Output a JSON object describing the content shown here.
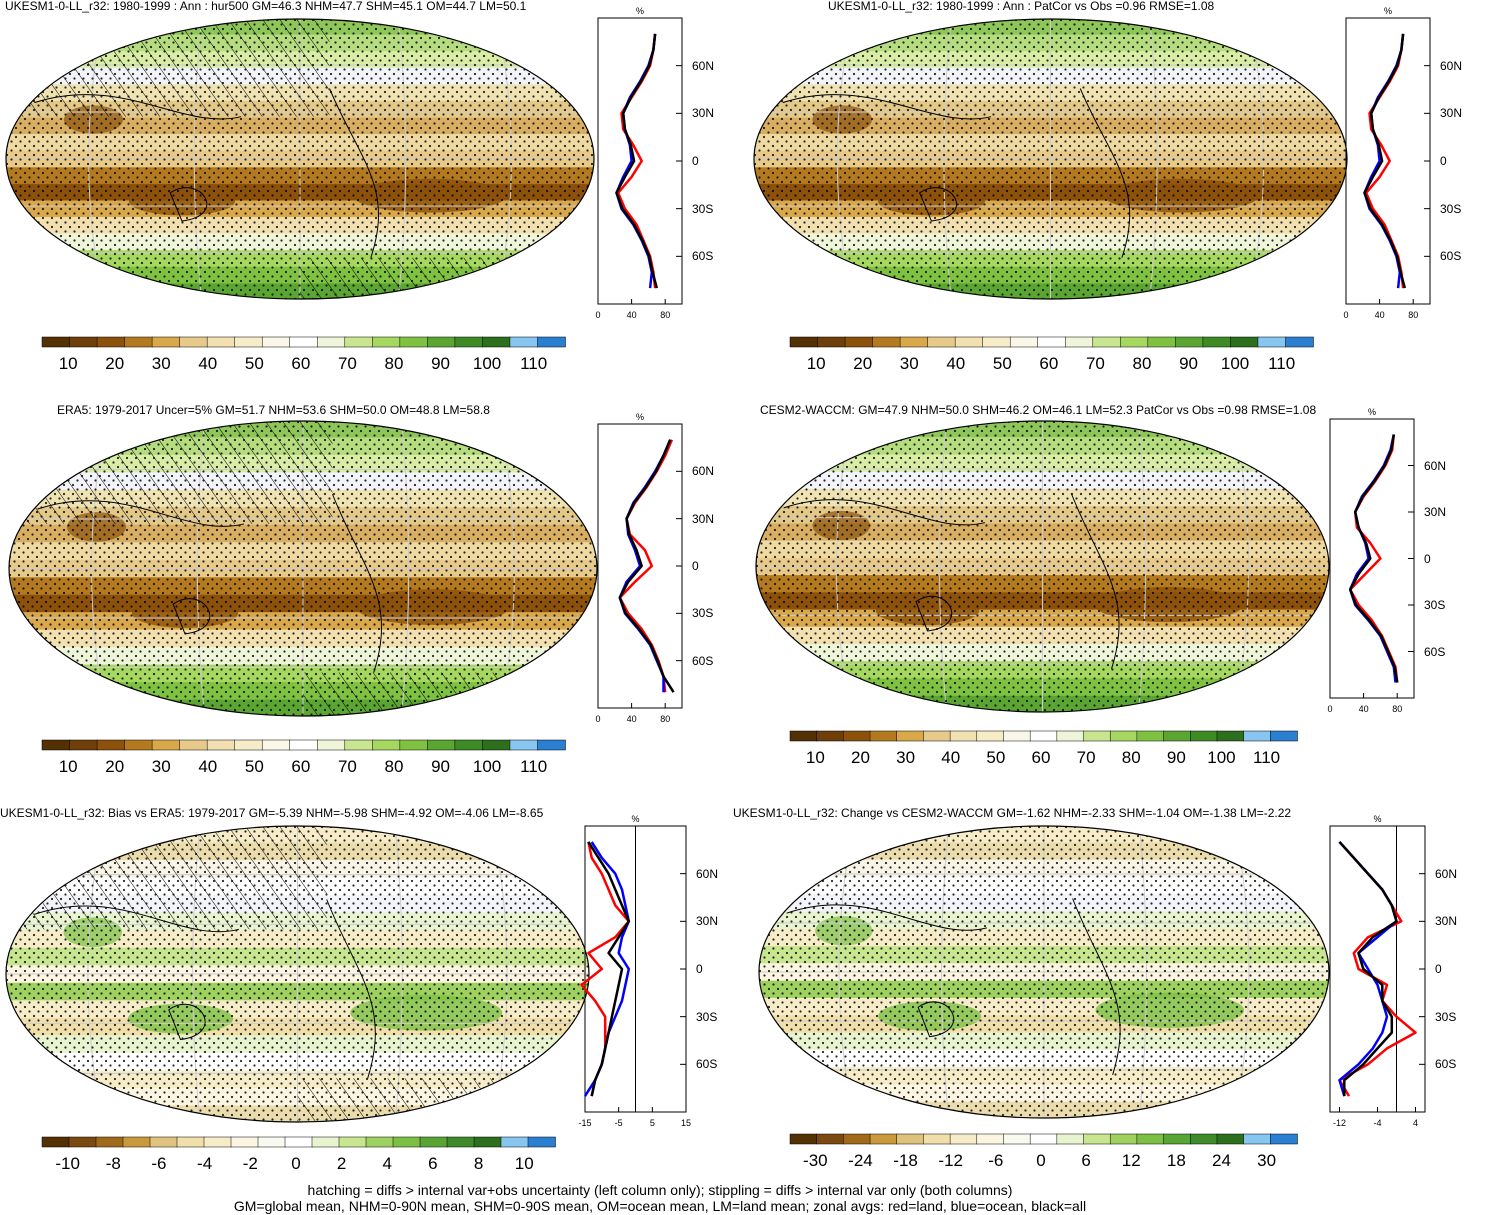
{
  "panels": [
    {
      "id": "p1",
      "title": "UKESM1-0-LL_r32: 1980-1999 : Ann : hur500 GM=46.3 NHM=47.7 SHM=45.1 OM=44.7 LM=50.1",
      "colorbar": {
        "labels": [
          "10",
          "20",
          "30",
          "40",
          "50",
          "60",
          "70",
          "80",
          "90",
          "100",
          "110"
        ],
        "palette": "hur"
      },
      "zonal": {
        "unit": "%",
        "x_ticks": [
          "0",
          "40",
          "80"
        ],
        "xlim": [
          0,
          100
        ],
        "lat_ticks": [
          "60N",
          "30N",
          "0",
          "30S",
          "60S"
        ],
        "has_zero_line": false,
        "series_colors": {
          "land": "#ff0000",
          "ocean": "#0000ff",
          "all": "#000000"
        }
      },
      "hatching": true
    },
    {
      "id": "p2",
      "title": "UKESM1-0-LL_r32: 1980-1999 : Ann : PatCor vs Obs =0.96 RMSE=1.08",
      "colorbar": {
        "labels": [
          "10",
          "20",
          "30",
          "40",
          "50",
          "60",
          "70",
          "80",
          "90",
          "100",
          "110"
        ],
        "palette": "hur"
      },
      "zonal": {
        "unit": "%",
        "x_ticks": [
          "0",
          "40",
          "80"
        ],
        "xlim": [
          0,
          100
        ],
        "lat_ticks": [
          "60N",
          "30N",
          "0",
          "30S",
          "60S"
        ],
        "has_zero_line": false
      },
      "hatching": false
    },
    {
      "id": "p3",
      "title": "ERA5: 1979-2017 Uncer=5% GM=51.7 NHM=53.6 SHM=50.0 OM=48.8 LM=58.8",
      "colorbar": {
        "labels": [
          "10",
          "20",
          "30",
          "40",
          "50",
          "60",
          "70",
          "80",
          "90",
          "100",
          "110"
        ],
        "palette": "hur"
      },
      "zonal": {
        "unit": "%",
        "x_ticks": [
          "0",
          "40",
          "80"
        ],
        "xlim": [
          0,
          100
        ],
        "lat_ticks": [
          "60N",
          "30N",
          "0",
          "30S",
          "60S"
        ],
        "has_zero_line": false
      },
      "hatching": true
    },
    {
      "id": "p4",
      "title": "CESM2-WACCM: GM=47.9 NHM=50.0 SHM=46.2 OM=46.1 LM=52.3 PatCor vs Obs =0.98 RMSE=1.08",
      "colorbar": {
        "labels": [
          "10",
          "20",
          "30",
          "40",
          "50",
          "60",
          "70",
          "80",
          "90",
          "100",
          "110"
        ],
        "palette": "hur"
      },
      "zonal": {
        "unit": "%",
        "x_ticks": [
          "0",
          "40",
          "80"
        ],
        "xlim": [
          0,
          100
        ],
        "lat_ticks": [
          "60N",
          "30N",
          "0",
          "30S",
          "60S"
        ],
        "has_zero_line": false
      },
      "hatching": false
    },
    {
      "id": "p5",
      "title": "UKESM1-0-LL_r32: Bias vs ERA5: 1979-2017 GM=-5.39 NHM=-5.98 SHM=-4.92 OM=-4.06 LM=-8.65",
      "colorbar": {
        "labels": [
          "-10",
          "-8",
          "-6",
          "-4",
          "-2",
          "0",
          "2",
          "4",
          "6",
          "8",
          "10"
        ],
        "palette": "diff"
      },
      "zonal": {
        "unit": "%",
        "x_ticks": [
          "-15",
          "-5",
          "5",
          "15"
        ],
        "xlim": [
          -15,
          15
        ],
        "lat_ticks": [
          "60N",
          "30N",
          "0",
          "30S",
          "60S"
        ],
        "has_zero_line": true
      },
      "hatching": true
    },
    {
      "id": "p6",
      "title": "UKESM1-0-LL_r32: Change vs CESM2-WACCM GM=-1.62 NHM=-2.33 SHM=-1.04 OM=-1.38 LM=-2.22",
      "colorbar": {
        "labels": [
          "-30",
          "-24",
          "-18",
          "-12",
          "-6",
          "0",
          "6",
          "12",
          "18",
          "24",
          "30"
        ],
        "palette": "diff"
      },
      "zonal": {
        "unit": "%",
        "x_ticks": [
          "-12",
          "-4",
          "4"
        ],
        "xlim": [
          -14,
          6
        ],
        "lat_ticks": [
          "60N",
          "30N",
          "0",
          "30S",
          "60S"
        ],
        "has_zero_line": true
      },
      "hatching": false
    }
  ],
  "footer": {
    "line1": "hatching = diffs > internal var+obs uncertainty (left column only); stippling = diffs > internal var only (both columns)",
    "line2": "GM=global mean, NHM=0-90N mean, SHM=0-90S mean, OM=ocean mean, LM=land mean; zonal avgs: red=land, blue=ocean, black=all"
  },
  "chart_data": [
    {
      "type": "line",
      "title": "UKESM1-0-LL_r32: 1980-1999 : Ann : hur500 GM=46.3 NHM=47.7 SHM=45.1 OM=44.7 LM=50.1",
      "xlabel": "%",
      "ylabel": "",
      "lat": [
        80,
        70,
        60,
        50,
        40,
        30,
        20,
        10,
        0,
        -10,
        -20,
        -30,
        -40,
        -50,
        -60,
        -70,
        -80
      ],
      "xlim": [
        0,
        100
      ],
      "series": [
        {
          "name": "red",
          "color": "#ff0000",
          "values": [
            68,
            66,
            62,
            52,
            40,
            28,
            30,
            42,
            52,
            40,
            24,
            32,
            46,
            54,
            62,
            66,
            68
          ]
        },
        {
          "name": "blue",
          "color": "#0000ff",
          "values": [
            68,
            66,
            60,
            50,
            38,
            30,
            32,
            38,
            40,
            30,
            22,
            28,
            42,
            52,
            60,
            64,
            62
          ]
        },
        {
          "name": "black",
          "color": "#000000",
          "values": [
            68,
            66,
            61,
            51,
            39,
            30,
            32,
            39,
            43,
            32,
            22,
            29,
            43,
            53,
            61,
            65,
            70
          ]
        }
      ]
    },
    {
      "type": "line",
      "title": "UKESM1-0-LL_r32: 1980-1999 : Ann : PatCor vs Obs =0.96 RMSE=1.08",
      "xlabel": "%",
      "ylabel": "",
      "lat": [
        80,
        70,
        60,
        50,
        40,
        30,
        20,
        10,
        0,
        -10,
        -20,
        -30,
        -40,
        -50,
        -60,
        -70,
        -80
      ],
      "xlim": [
        0,
        100
      ],
      "series": [
        {
          "name": "red",
          "color": "#ff0000",
          "values": [
            68,
            66,
            62,
            52,
            40,
            28,
            30,
            42,
            52,
            40,
            24,
            32,
            46,
            54,
            62,
            66,
            68
          ]
        },
        {
          "name": "blue",
          "color": "#0000ff",
          "values": [
            68,
            66,
            60,
            50,
            38,
            30,
            32,
            38,
            40,
            30,
            22,
            28,
            42,
            52,
            60,
            64,
            62
          ]
        },
        {
          "name": "black",
          "color": "#000000",
          "values": [
            68,
            66,
            61,
            51,
            39,
            30,
            32,
            39,
            43,
            32,
            22,
            29,
            43,
            53,
            61,
            65,
            70
          ]
        }
      ]
    },
    {
      "type": "line",
      "title": "ERA5: 1979-2017 Uncer=5% GM=51.7 NHM=53.6 SHM=50.0 OM=48.8 LM=58.8",
      "xlabel": "%",
      "ylabel": "",
      "lat": [
        80,
        70,
        60,
        50,
        40,
        30,
        20,
        10,
        0,
        -10,
        -20,
        -30,
        -40,
        -50,
        -60,
        -70,
        -80
      ],
      "xlim": [
        0,
        100
      ],
      "series": [
        {
          "name": "red",
          "color": "#ff0000",
          "values": [
            88,
            80,
            70,
            58,
            44,
            34,
            38,
            56,
            64,
            44,
            26,
            36,
            52,
            64,
            72,
            78,
            80
          ]
        },
        {
          "name": "blue",
          "color": "#0000ff",
          "values": [
            86,
            78,
            68,
            56,
            42,
            34,
            36,
            44,
            50,
            34,
            26,
            32,
            48,
            62,
            70,
            78,
            78
          ]
        },
        {
          "name": "black",
          "color": "#000000",
          "values": [
            86,
            78,
            69,
            57,
            43,
            34,
            37,
            46,
            52,
            36,
            26,
            33,
            49,
            63,
            71,
            78,
            90
          ]
        }
      ]
    },
    {
      "type": "line",
      "title": "CESM2-WACCM: GM=47.9 NHM=50.0 SHM=46.2 OM=46.1 LM=52.3 PatCor vs Obs =0.98 RMSE=1.08",
      "xlabel": "%",
      "ylabel": "",
      "lat": [
        80,
        70,
        60,
        50,
        40,
        30,
        20,
        10,
        0,
        -10,
        -20,
        -30,
        -40,
        -50,
        -60,
        -70,
        -80
      ],
      "xlim": [
        0,
        100
      ],
      "series": [
        {
          "name": "red",
          "color": "#ff0000",
          "values": [
            76,
            74,
            66,
            54,
            40,
            30,
            32,
            48,
            60,
            42,
            24,
            34,
            50,
            62,
            70,
            78,
            80
          ]
        },
        {
          "name": "blue",
          "color": "#0000ff",
          "values": [
            76,
            72,
            64,
            52,
            38,
            30,
            34,
            42,
            46,
            32,
            24,
            30,
            46,
            60,
            68,
            76,
            78
          ]
        },
        {
          "name": "black",
          "color": "#000000",
          "values": [
            76,
            73,
            65,
            53,
            39,
            30,
            34,
            43,
            48,
            34,
            24,
            31,
            47,
            61,
            69,
            77,
            80
          ]
        }
      ]
    },
    {
      "type": "line",
      "title": "UKESM1-0-LL_r32: Bias vs ERA5: 1979-2017 GM=-5.39 NHM=-5.98 SHM=-4.92 OM=-4.06 LM=-8.65",
      "xlabel": "%",
      "ylabel": "",
      "lat": [
        80,
        70,
        60,
        50,
        40,
        30,
        20,
        10,
        0,
        -10,
        -20,
        -30,
        -40,
        -50,
        -60,
        -70,
        -80
      ],
      "xlim": [
        -15,
        15
      ],
      "series": [
        {
          "name": "red",
          "color": "#ff0000",
          "values": [
            -14,
            -13,
            -10,
            -8,
            -6,
            -2,
            -6,
            -14,
            -10,
            -16,
            -12,
            -9,
            -9,
            -9,
            -10,
            -12,
            -13
          ]
        },
        {
          "name": "blue",
          "color": "#0000ff",
          "values": [
            -13,
            -10,
            -6,
            -4,
            -3,
            -2,
            -4,
            -5,
            -2,
            -3,
            -4,
            -6,
            -8,
            -9,
            -10,
            -12,
            -15
          ]
        },
        {
          "name": "black",
          "color": "#000000",
          "values": [
            -14,
            -11,
            -8,
            -6,
            -4,
            -2,
            -5,
            -8,
            -4,
            -5,
            -6,
            -7,
            -8,
            -9,
            -10,
            -12,
            -13
          ]
        }
      ]
    },
    {
      "type": "line",
      "title": "UKESM1-0-LL_r32: Change vs CESM2-WACCM GM=-1.62 NHM=-2.33 SHM=-1.04 OM=-1.38 LM=-2.22",
      "xlabel": "%",
      "ylabel": "",
      "lat": [
        80,
        70,
        60,
        50,
        40,
        30,
        20,
        10,
        0,
        -10,
        -20,
        -30,
        -40,
        -50,
        -60,
        -70,
        -80
      ],
      "xlim": [
        -14,
        6
      ],
      "series": [
        {
          "name": "red",
          "color": "#ff0000",
          "values": [
            -12,
            -9,
            -6,
            -3,
            -1,
            1,
            -6,
            -9,
            -8,
            -2,
            -3,
            0,
            4,
            -2,
            -6,
            -12,
            -10
          ]
        },
        {
          "name": "blue",
          "color": "#0000ff",
          "values": [
            -12,
            -9,
            -6,
            -3,
            -1,
            0,
            -4,
            -8,
            -6,
            -4,
            -3,
            -2,
            -3,
            -5,
            -8,
            -12,
            -11
          ]
        },
        {
          "name": "black",
          "color": "#000000",
          "values": [
            -12,
            -9,
            -6,
            -3,
            -1,
            0,
            -5,
            -8,
            -7,
            -3,
            -3,
            -1,
            -1,
            -4,
            -7,
            -11,
            -11
          ]
        }
      ]
    }
  ]
}
